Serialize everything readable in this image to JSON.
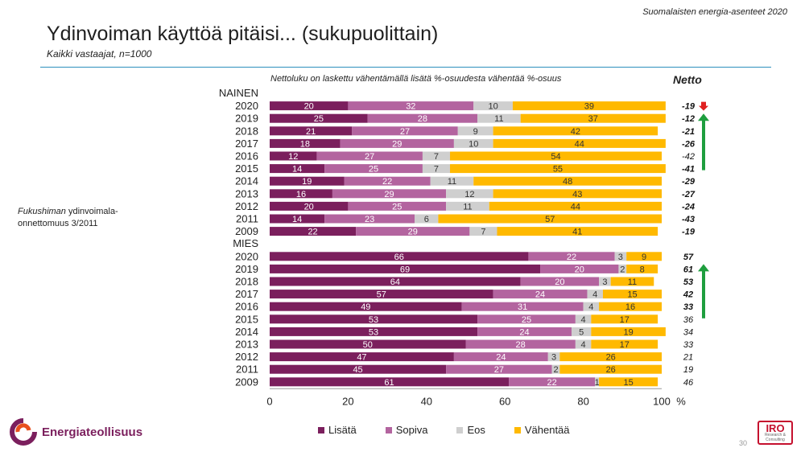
{
  "header": {
    "survey": "Suomalaisten energia-asenteet 2020",
    "title": "Ydinvoiman käyttöä pitäisi... (sukupuolittain)",
    "subtitle": "Kaikki vastaajat, n=1000",
    "note": "Nettoluku on laskettu vähentämällä lisätä %-osuudesta vähentää %-osuus",
    "netto_label": "Netto"
  },
  "left_note": {
    "italic": "Fukushiman",
    "rest": " ydinvoimala-onnettomuus 3/2011"
  },
  "colors": {
    "lisata": "#7b1f5d",
    "sopiva": "#b3649f",
    "eos": "#cfcfcf",
    "vahentaa": "#ffb900",
    "arrow_up": "#1e9e3e",
    "arrow_down": "#e02020"
  },
  "chart_data": {
    "type": "bar",
    "orientation": "horizontal",
    "stacked": true,
    "xlim": [
      0,
      100
    ],
    "xticks": [
      0,
      20,
      40,
      60,
      80,
      100
    ],
    "x_unit": "%",
    "series_names": [
      "Lisätä",
      "Sopiva",
      "Eos",
      "Vähentää"
    ],
    "groups": [
      {
        "label": "NAINEN",
        "rows": [
          {
            "year": "2020",
            "values": [
              20,
              32,
              10,
              39
            ],
            "netto": "-19",
            "bold": true
          },
          {
            "year": "2019",
            "values": [
              25,
              28,
              11,
              37
            ],
            "netto": "-12",
            "bold": true
          },
          {
            "year": "2018",
            "values": [
              21,
              27,
              9,
              42
            ],
            "netto": "-21",
            "bold": true
          },
          {
            "year": "2017",
            "values": [
              18,
              29,
              10,
              44
            ],
            "netto": "-26",
            "bold": true
          },
          {
            "year": "2016",
            "values": [
              12,
              27,
              7,
              54
            ],
            "netto": "-42",
            "bold": false
          },
          {
            "year": "2015",
            "values": [
              14,
              25,
              7,
              55
            ],
            "netto": "-41",
            "bold": true
          },
          {
            "year": "2014",
            "values": [
              19,
              22,
              11,
              48
            ],
            "netto": "-29",
            "bold": true
          },
          {
            "year": "2013",
            "values": [
              16,
              29,
              12,
              43
            ],
            "netto": "-27",
            "bold": true
          },
          {
            "year": "2012",
            "values": [
              20,
              25,
              11,
              44
            ],
            "netto": "-24",
            "bold": true
          },
          {
            "year": "2011",
            "values": [
              14,
              23,
              6,
              57
            ],
            "netto": "-43",
            "bold": true
          },
          {
            "year": "2009",
            "values": [
              22,
              29,
              7,
              41
            ],
            "netto": "-19",
            "bold": true
          }
        ]
      },
      {
        "label": "MIES",
        "rows": [
          {
            "year": "2020",
            "values": [
              66,
              22,
              3,
              9
            ],
            "netto": "57",
            "bold": true
          },
          {
            "year": "2019",
            "values": [
              69,
              20,
              2,
              8
            ],
            "netto": "61",
            "bold": true
          },
          {
            "year": "2018",
            "values": [
              64,
              20,
              3,
              11
            ],
            "netto": "53",
            "bold": true
          },
          {
            "year": "2017",
            "values": [
              57,
              24,
              4,
              15
            ],
            "netto": "42",
            "bold": true
          },
          {
            "year": "2016",
            "values": [
              49,
              31,
              4,
              16
            ],
            "netto": "33",
            "bold": true
          },
          {
            "year": "2015",
            "values": [
              53,
              25,
              4,
              17
            ],
            "netto": "36",
            "bold": false
          },
          {
            "year": "2014",
            "values": [
              53,
              24,
              5,
              19
            ],
            "netto": "34",
            "bold": false
          },
          {
            "year": "2013",
            "values": [
              50,
              28,
              4,
              17
            ],
            "netto": "33",
            "bold": false
          },
          {
            "year": "2012",
            "values": [
              47,
              24,
              3,
              26
            ],
            "netto": "21",
            "bold": false
          },
          {
            "year": "2011",
            "values": [
              45,
              27,
              2,
              26
            ],
            "netto": "19",
            "bold": false
          },
          {
            "year": "2009",
            "values": [
              61,
              22,
              1,
              15
            ],
            "netto": "46",
            "bold": false
          }
        ]
      }
    ]
  },
  "footer": {
    "logo_text": "Energiateollisuus",
    "iro_text": "IRO",
    "iro_sub": "Research & Consulting",
    "page": "30"
  }
}
